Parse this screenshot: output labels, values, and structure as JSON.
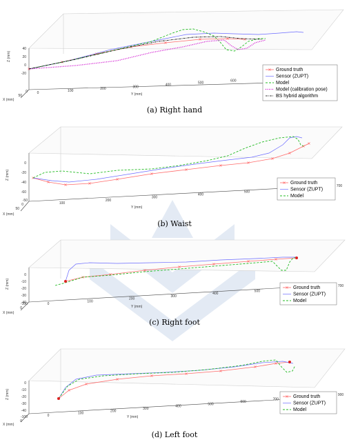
{
  "figure": {
    "watermark_icon": "university-seal-icon",
    "colors": {
      "ground_truth": "#ff6a6a",
      "sensor": "#6a6aff",
      "model": "#22bb22",
      "model_calib": "#cc00cc",
      "hybrid": "#000000",
      "watermark": "#6a8fc8"
    }
  },
  "chart_data": [
    {
      "type": "line",
      "id": "a",
      "caption": "(a) Right hand",
      "axes": {
        "xlabel": "X (mm)",
        "ylabel": "Y (mm)",
        "zlabel": "Z (mm)",
        "x_ticks": [
          "0",
          "50"
        ],
        "y_ticks": [
          "0",
          "100",
          "200",
          "300",
          "400",
          "500",
          "600",
          "700",
          "800",
          "900"
        ],
        "z_ticks": [
          "40",
          "20",
          "0",
          "-20"
        ]
      },
      "legend": [
        {
          "key": "ground_truth",
          "label": "Ground truth"
        },
        {
          "key": "sensor",
          "label": "Sensor (ZUPT)"
        },
        {
          "key": "model",
          "label": "Model"
        },
        {
          "key": "model_calib",
          "label": "Model (calibration pose)"
        },
        {
          "key": "hybrid",
          "label": "BS hybrid algorithm"
        }
      ],
      "series": [
        {
          "key": "ground_truth",
          "points": [
            [
              42,
              100
            ],
            [
              90,
              90
            ],
            [
              140,
              78
            ],
            [
              190,
              68
            ],
            [
              240,
              62
            ],
            [
              290,
              57
            ],
            [
              330,
              56
            ],
            [
              355,
              57
            ]
          ]
        },
        {
          "key": "sensor",
          "points": [
            [
              42,
              100
            ],
            [
              100,
              88
            ],
            [
              160,
              72
            ],
            [
              220,
              60
            ],
            [
              270,
              50
            ],
            [
              310,
              48
            ],
            [
              340,
              49
            ],
            [
              375,
              50
            ],
            [
              405,
              48
            ],
            [
              430,
              46
            ],
            [
              440,
              47
            ]
          ]
        },
        {
          "key": "model",
          "points": [
            [
              42,
              100
            ],
            [
              100,
              88
            ],
            [
              160,
              74
            ],
            [
              220,
              60
            ],
            [
              250,
              48
            ],
            [
              265,
              43
            ],
            [
              280,
              42
            ],
            [
              295,
              46
            ],
            [
              310,
              52
            ],
            [
              320,
              62
            ],
            [
              328,
              72
            ],
            [
              340,
              74
            ],
            [
              350,
              68
            ],
            [
              360,
              60
            ],
            [
              375,
              56
            ],
            [
              385,
              56
            ]
          ]
        },
        {
          "key": "model_calib",
          "points": [
            [
              42,
              100
            ],
            [
              110,
              95
            ],
            [
              170,
              88
            ],
            [
              220,
              76
            ],
            [
              265,
              68
            ],
            [
              300,
              60
            ],
            [
              325,
              58
            ],
            [
              335,
              66
            ],
            [
              345,
              72
            ],
            [
              358,
              70
            ],
            [
              370,
              62
            ],
            [
              385,
              58
            ]
          ]
        },
        {
          "key": "hybrid",
          "points": [
            [
              42,
              100
            ],
            [
              110,
              86
            ],
            [
              170,
              72
            ],
            [
              230,
              60
            ],
            [
              280,
              54
            ],
            [
              320,
              53
            ],
            [
              350,
              56
            ],
            [
              380,
              57
            ]
          ]
        }
      ]
    },
    {
      "type": "line",
      "id": "b",
      "caption": "(b) Waist",
      "axes": {
        "xlabel": "X (mm)",
        "ylabel": "Y (mm)",
        "zlabel": "Z (mm)",
        "x_ticks": [
          "-50",
          "0",
          "50"
        ],
        "y_ticks": [
          "100",
          "200",
          "300",
          "400",
          "500",
          "600",
          "700"
        ],
        "z_ticks": [
          "0",
          "-20",
          "-40",
          "-60"
        ]
      },
      "legend": [
        {
          "key": "ground_truth",
          "label": "Ground truth"
        },
        {
          "key": "sensor",
          "label": "Sensor (ZUPT)"
        },
        {
          "key": "model",
          "label": "Model"
        }
      ],
      "series": [
        {
          "key": "ground_truth",
          "points": [
            [
              48,
              258
            ],
            [
              70,
              264
            ],
            [
              95,
              268
            ],
            [
              130,
              266
            ],
            [
              170,
              260
            ],
            [
              220,
              252
            ],
            [
              270,
              246
            ],
            [
              320,
              240
            ],
            [
              360,
              236
            ],
            [
              395,
              230
            ],
            [
              420,
              222
            ],
            [
              440,
              212
            ],
            [
              448,
              208
            ]
          ]
        },
        {
          "key": "sensor",
          "points": [
            [
              48,
              258
            ],
            [
              75,
              262
            ],
            [
              100,
              264
            ],
            [
              140,
              260
            ],
            [
              190,
              252
            ],
            [
              240,
              244
            ],
            [
              290,
              237
            ],
            [
              330,
              232
            ],
            [
              365,
              228
            ],
            [
              390,
              222
            ],
            [
              410,
              210
            ],
            [
              420,
              200
            ],
            [
              430,
              198
            ],
            [
              438,
              200
            ]
          ]
        },
        {
          "key": "model",
          "points": [
            [
              48,
              258
            ],
            [
              65,
              250
            ],
            [
              90,
              248
            ],
            [
              130,
              252
            ],
            [
              170,
              247
            ],
            [
              220,
              245
            ],
            [
              260,
              240
            ],
            [
              300,
              233
            ],
            [
              330,
              226
            ],
            [
              355,
              215
            ],
            [
              380,
              206
            ],
            [
              405,
              200
            ],
            [
              425,
              198
            ],
            [
              432,
              202
            ],
            [
              436,
              210
            ],
            [
              440,
              212
            ]
          ]
        }
      ]
    },
    {
      "type": "line",
      "id": "c",
      "caption": "(c) Right foot",
      "axes": {
        "xlabel": "X (mm)",
        "ylabel": "Y (mm)",
        "zlabel": "Z (mm)",
        "x_ticks": [
          "-100",
          "0"
        ],
        "y_ticks": [
          "0",
          "100",
          "200",
          "300",
          "400",
          "500",
          "600",
          "700"
        ],
        "z_ticks": [
          "0",
          "-10",
          "-20",
          "-30",
          "-40"
        ]
      },
      "legend": [
        {
          "key": "ground_truth",
          "label": "Ground truth"
        },
        {
          "key": "sensor",
          "label": "Sensor (ZUPT)"
        },
        {
          "key": "model",
          "label": "Model"
        }
      ],
      "series": [
        {
          "key": "ground_truth",
          "points": [
            [
              95,
              408
            ],
            [
              120,
              402
            ],
            [
              160,
              398
            ],
            [
              210,
              392
            ],
            [
              260,
              387
            ],
            [
              310,
              383
            ],
            [
              360,
              379
            ],
            [
              400,
              376
            ],
            [
              430,
              374
            ]
          ]
        },
        {
          "key": "sensor",
          "points": [
            [
              95,
              408
            ],
            [
              100,
              392
            ],
            [
              110,
              383
            ],
            [
              130,
              381
            ],
            [
              170,
              382
            ],
            [
              220,
              381
            ],
            [
              270,
              380
            ],
            [
              320,
              377
            ],
            [
              370,
              375
            ],
            [
              410,
              373
            ],
            [
              430,
              373
            ]
          ]
        },
        {
          "key": "model",
          "points": [
            [
              80,
              414
            ],
            [
              95,
              410
            ],
            [
              120,
              402
            ],
            [
              160,
              399
            ],
            [
              210,
              394
            ],
            [
              260,
              390
            ],
            [
              310,
              386
            ],
            [
              360,
              382
            ],
            [
              395,
              379
            ],
            [
              402,
              386
            ],
            [
              408,
              392
            ],
            [
              415,
              392
            ],
            [
              420,
              380
            ],
            [
              425,
              374
            ],
            [
              432,
              374
            ]
          ]
        }
      ]
    },
    {
      "type": "line",
      "id": "d",
      "caption": "(d) Left foot",
      "axes": {
        "xlabel": "X (mm)",
        "ylabel": "Y (mm)",
        "zlabel": "Z (mm)",
        "x_ticks": [
          "-100",
          "0"
        ],
        "y_ticks": [
          "0",
          "100",
          "200",
          "300",
          "400",
          "500",
          "600",
          "700",
          "800",
          "900"
        ],
        "z_ticks": [
          "0",
          "-10",
          "-20",
          "-30",
          "-40"
        ]
      },
      "legend": [
        {
          "key": "ground_truth",
          "label": "Ground truth"
        },
        {
          "key": "sensor",
          "label": "Sensor (ZUPT)"
        },
        {
          "key": "model",
          "label": "Model"
        }
      ],
      "series": [
        {
          "key": "ground_truth",
          "points": [
            [
              85,
              578
            ],
            [
              100,
              566
            ],
            [
              125,
              557
            ],
            [
              170,
              550
            ],
            [
              220,
              545
            ],
            [
              270,
              542
            ],
            [
              320,
              538
            ],
            [
              370,
              532
            ],
            [
              400,
              527
            ],
            [
              420,
              525
            ]
          ]
        },
        {
          "key": "sensor",
          "points": [
            [
              85,
              578
            ],
            [
              95,
              562
            ],
            [
              110,
              550
            ],
            [
              140,
              544
            ],
            [
              190,
              542
            ],
            [
              240,
              540
            ],
            [
              290,
              537
            ],
            [
              340,
              532
            ],
            [
              380,
              526
            ],
            [
              410,
              524
            ],
            [
              425,
              527
            ]
          ]
        },
        {
          "key": "model",
          "points": [
            [
              85,
              578
            ],
            [
              98,
              560
            ],
            [
              115,
              550
            ],
            [
              150,
              545
            ],
            [
              200,
              542
            ],
            [
              250,
              540
            ],
            [
              300,
              536
            ],
            [
              350,
              530
            ],
            [
              380,
              524
            ],
            [
              400,
              522
            ],
            [
              408,
              532
            ],
            [
              416,
              540
            ],
            [
              424,
              538
            ],
            [
              428,
              530
            ]
          ]
        }
      ]
    }
  ]
}
